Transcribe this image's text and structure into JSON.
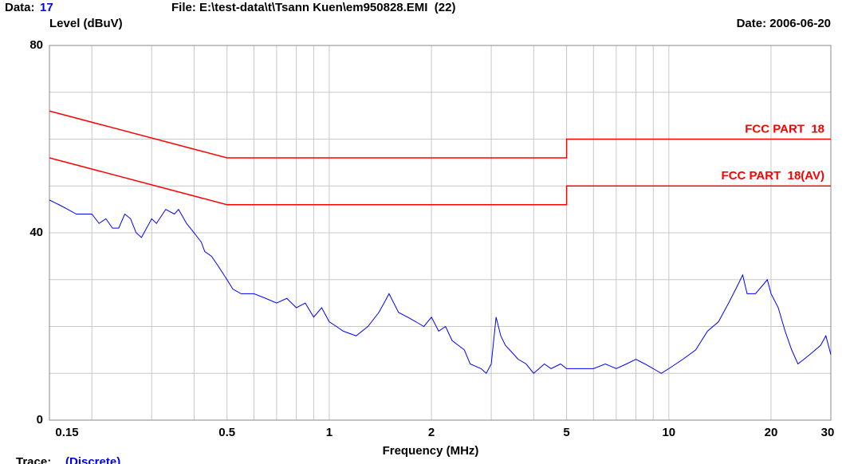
{
  "chart_data": {
    "type": "line",
    "header": {
      "data_label": "Data:",
      "data_id": 17,
      "file": "File: E:\\test-data\\t\\Tsann Kuen\\em950828.EMI  (22)",
      "date": "Date: 2006-06-20",
      "trace_label": "Trace:",
      "trace_mode": "(Discrete)"
    },
    "ylabel": "Level (dBuV)",
    "xlabel": "Frequency (MHz)",
    "xscale": "log",
    "xlim": [
      0.15,
      30
    ],
    "xticks": [
      0.15,
      0.5,
      1,
      2,
      5,
      10,
      20,
      30
    ],
    "xgrid_minor": [
      0.2,
      0.3,
      0.4,
      0.6,
      0.7,
      0.8,
      0.9,
      3,
      4,
      6,
      7,
      8,
      9
    ],
    "ylim": [
      0,
      80
    ],
    "yticks": [
      0,
      40,
      80
    ],
    "ygrid_minor": [
      10,
      20,
      30,
      50,
      60,
      70
    ],
    "grid": true,
    "series": [
      {
        "name": "FCC PART  18",
        "color": "#ff0000",
        "x": [
          0.15,
          0.5,
          5,
          5,
          30
        ],
        "values": [
          66,
          56,
          56,
          60,
          60
        ]
      },
      {
        "name": "FCC PART  18(AV)",
        "color": "#ff0000",
        "x": [
          0.15,
          0.5,
          5,
          5,
          30
        ],
        "values": [
          56,
          46,
          46,
          50,
          50
        ]
      },
      {
        "color": "#0000ff",
        "x": [
          0.15,
          0.16,
          0.17,
          0.18,
          0.2,
          0.21,
          0.22,
          0.23,
          0.24,
          0.25,
          0.26,
          0.27,
          0.28,
          0.3,
          0.31,
          0.33,
          0.35,
          0.36,
          0.38,
          0.4,
          0.42,
          0.43,
          0.45,
          0.47,
          0.5,
          0.52,
          0.55,
          0.6,
          0.65,
          0.7,
          0.75,
          0.8,
          0.85,
          0.9,
          0.95,
          1.0,
          1.05,
          1.1,
          1.2,
          1.3,
          1.4,
          1.45,
          1.5,
          1.6,
          1.7,
          1.8,
          1.9,
          2.0,
          2.1,
          2.2,
          2.3,
          2.5,
          2.6,
          2.8,
          2.9,
          3.0,
          3.1,
          3.2,
          3.3,
          3.5,
          3.6,
          3.8,
          4.0,
          4.3,
          4.5,
          4.8,
          5,
          5.5,
          6,
          6.5,
          7,
          7.5,
          8,
          8.5,
          9,
          9.5,
          10,
          11,
          12,
          13,
          14,
          15,
          16,
          16.5,
          17,
          18,
          19,
          19.5,
          20,
          21,
          22,
          23,
          24,
          25,
          26,
          27,
          28,
          29,
          30
        ],
        "values": [
          47,
          46,
          45,
          44,
          44,
          42,
          43,
          41,
          41,
          44,
          43,
          40,
          39,
          43,
          42,
          45,
          44,
          45,
          42,
          40,
          38,
          36,
          35,
          33,
          30,
          28,
          27,
          27,
          26,
          25,
          26,
          24,
          25,
          22,
          24,
          21,
          20,
          19,
          18,
          20,
          23,
          25,
          27,
          23,
          22,
          21,
          20,
          22,
          19,
          20,
          17,
          15,
          12,
          11,
          10,
          12,
          22,
          18,
          16,
          14,
          13,
          12,
          10,
          12,
          11,
          12,
          11,
          11,
          11,
          12,
          11,
          12,
          13,
          12,
          11,
          10,
          11,
          13,
          15,
          19,
          21,
          25,
          29,
          31,
          27,
          27,
          29,
          30,
          27,
          24,
          19,
          15,
          12,
          13,
          14,
          15,
          16,
          18,
          14
        ]
      }
    ]
  }
}
